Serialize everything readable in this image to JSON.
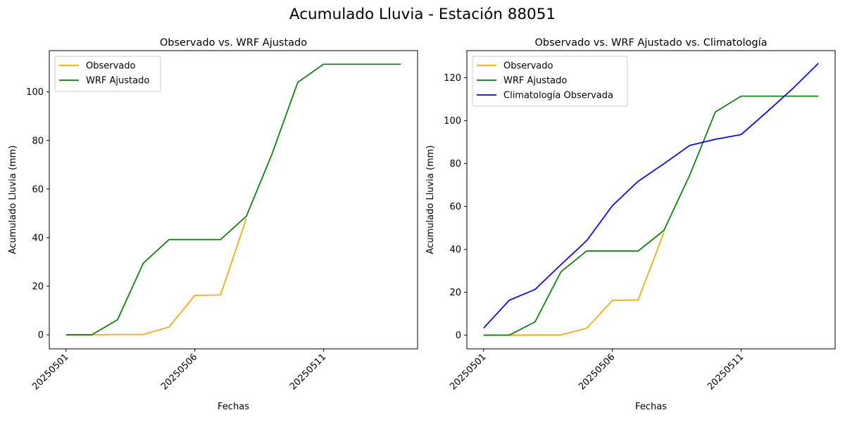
{
  "suptitle": "Acumulado Lluvia - Estación 88051",
  "colors": {
    "observado": "#ffa500",
    "wrf": "#008000",
    "climatologia": "#0000ff"
  },
  "chart_data": [
    {
      "type": "line",
      "title": "Observado vs. WRF Ajustado",
      "xlabel": "Fechas",
      "ylabel": "Acumulado Lluvia (mm)",
      "x": [
        "20250501",
        "20250502",
        "20250503",
        "20250504",
        "20250505",
        "20250506",
        "20250507",
        "20250508",
        "20250509",
        "20250510",
        "20250511",
        "20250512",
        "20250513",
        "20250514"
      ],
      "x_ticks": [
        "20250501",
        "20250506",
        "20250511"
      ],
      "y_ticks": [
        0,
        20,
        40,
        60,
        80,
        100
      ],
      "ylim": [
        -5.8,
        117.0
      ],
      "grid": false,
      "legend_position": "upper-left",
      "series": [
        {
          "name": "Observado",
          "color": "#ffa500",
          "values": [
            0.0,
            0.0,
            0.1,
            0.1,
            3.2,
            16.2,
            16.4,
            47.8,
            null,
            null,
            null,
            null,
            null,
            null
          ]
        },
        {
          "name": "WRF Ajustado",
          "color": "#008000",
          "values": [
            0.0,
            0.0,
            6.2,
            29.5,
            39.2,
            39.2,
            39.2,
            48.8,
            74.5,
            104.0,
            111.4,
            111.4,
            111.4,
            111.4
          ]
        }
      ]
    },
    {
      "type": "line",
      "title": "Observado vs. WRF Ajustado vs. Climatología",
      "xlabel": "Fechas",
      "ylabel": "Acumulado Lluvia (mm)",
      "x": [
        "20250501",
        "20250502",
        "20250503",
        "20250504",
        "20250505",
        "20250506",
        "20250507",
        "20250508",
        "20250509",
        "20250510",
        "20250511",
        "20250512",
        "20250513",
        "20250514"
      ],
      "x_ticks": [
        "20250501",
        "20250506",
        "20250511"
      ],
      "y_ticks": [
        0,
        20,
        40,
        60,
        80,
        100,
        120
      ],
      "ylim": [
        -6.4,
        132.6
      ],
      "grid": false,
      "legend_position": "upper-left",
      "series": [
        {
          "name": "Observado",
          "color": "#ffa500",
          "values": [
            0.0,
            0.0,
            0.1,
            0.1,
            3.2,
            16.2,
            16.4,
            47.8,
            null,
            null,
            null,
            null,
            null,
            null
          ]
        },
        {
          "name": "WRF Ajustado",
          "color": "#008000",
          "values": [
            0.0,
            0.0,
            6.2,
            29.5,
            39.2,
            39.2,
            39.2,
            48.8,
            74.5,
            104.0,
            111.4,
            111.4,
            111.4,
            111.4
          ]
        },
        {
          "name": "Climatología Observada",
          "color": "#0000ff",
          "values": [
            3.3,
            16.3,
            21.3,
            32.8,
            44.0,
            60.3,
            71.7,
            79.9,
            88.4,
            91.3,
            93.5,
            104.0,
            114.9,
            126.7
          ]
        }
      ]
    }
  ]
}
